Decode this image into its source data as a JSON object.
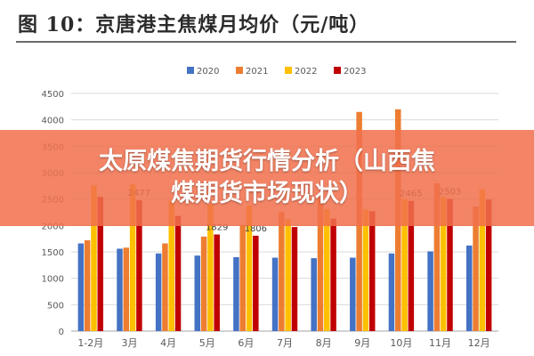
{
  "figure_title": "图 10：京唐港主焦煤月均价（元/吨）",
  "overlay": {
    "line1": "太原煤焦期货行情分析（山西焦",
    "line2": "煤期货市场现状）"
  },
  "colors": {
    "s2020": "#4472C4",
    "s2021": "#ED7D31",
    "s2022": "#FFC000",
    "s2023": "#C00000",
    "grid": "#D9D9D9",
    "axis_text": "#595959",
    "banner": "#F1704D"
  },
  "chart_data": {
    "type": "bar",
    "title": "",
    "xlabel": "",
    "ylabel": "",
    "ylim": [
      0,
      4500
    ],
    "yticks": [
      "0",
      "500",
      "1000",
      "1500",
      "2000",
      "2500",
      "3000",
      "3500",
      "4000",
      "4500"
    ],
    "grid": true,
    "legend_position": "top-center",
    "categories": [
      "1-2月",
      "3月",
      "4月",
      "5月",
      "6月",
      "7月",
      "8月",
      "9月",
      "10月",
      "11月",
      "12月"
    ],
    "series": [
      {
        "name": "2020",
        "color_key": "s2020",
        "values": [
          1660,
          1560,
          1470,
          1430,
          1400,
          1390,
          1380,
          1390,
          1470,
          1510,
          1620
        ]
      },
      {
        "name": "2021",
        "color_key": "s2021",
        "values": [
          1720,
          1580,
          1660,
          1790,
          2010,
          2260,
          2520,
          4150,
          4200,
          2800,
          2360
        ]
      },
      {
        "name": "2022",
        "color_key": "s2022",
        "values": [
          2760,
          2780,
          2470,
          2400,
          2380,
          2120,
          2310,
          2300,
          2500,
          2540,
          2690
        ]
      },
      {
        "name": "2023",
        "color_key": "s2023",
        "values": [
          2540,
          2477,
          2180,
          1829,
          1806,
          1970,
          2130,
          2270,
          2465,
          2503,
          2490
        ]
      }
    ],
    "data_labels": [
      {
        "series": "2023",
        "index": 1,
        "text": "2477"
      },
      {
        "series": "2023",
        "index": 3,
        "text": "1829"
      },
      {
        "series": "2023",
        "index": 4,
        "text": "1806"
      },
      {
        "series": "2023",
        "index": 8,
        "text": "2465"
      },
      {
        "series": "2023",
        "index": 9,
        "text": "2503"
      }
    ]
  }
}
